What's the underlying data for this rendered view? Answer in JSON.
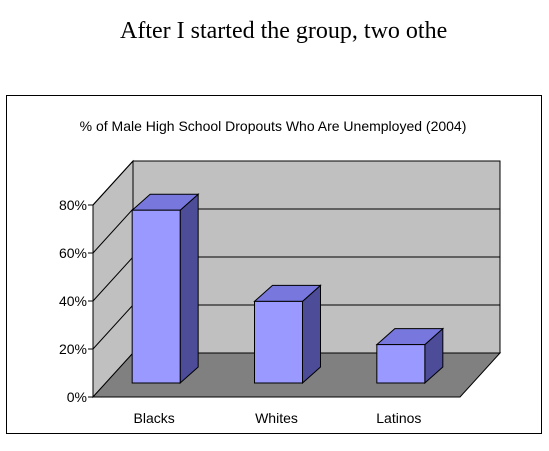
{
  "document": {
    "visible_text": "After I started the group, two othe"
  },
  "chart_data": {
    "type": "bar",
    "title": "% of Male High School Dropouts Who Are Unemployed (2004)",
    "categories": [
      "Blacks",
      "Whites",
      "Latinos"
    ],
    "values": [
      72,
      34,
      16
    ],
    "ylim": [
      0,
      80
    ],
    "yticks": [
      0,
      20,
      40,
      60,
      80
    ],
    "ytick_labels": [
      "0%",
      "20%",
      "40%",
      "60%",
      "80%"
    ],
    "grid": true,
    "legend": "none",
    "style": "3d",
    "colors": {
      "bar_front": "#9999ff",
      "bar_side": "#4c4c99",
      "bar_top": "#7777dd",
      "wall": "#c0c0c0",
      "floor": "#808080",
      "gridline": "#000000"
    }
  }
}
